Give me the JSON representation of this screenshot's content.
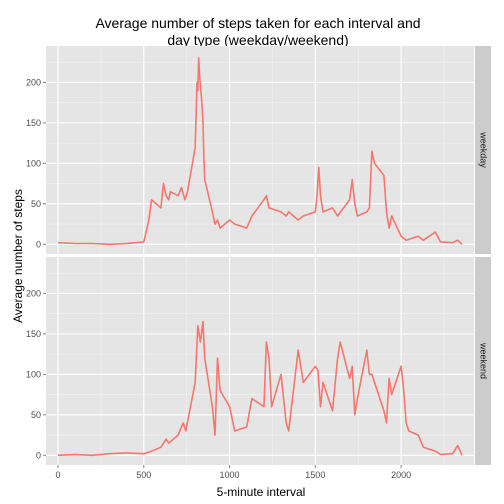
{
  "chart_data": {
    "type": "line",
    "title_lines": [
      "Average number of steps taken for each interval and",
      "day type (weekday/weekend)"
    ],
    "xlabel": "5-minute interval",
    "ylabel": "Average number of steps",
    "x_ticks": [
      0,
      500,
      1000,
      1500,
      2000
    ],
    "y_ticks": [
      0,
      50,
      100,
      150,
      200
    ],
    "xlim": [
      -70,
      2425
    ],
    "ylim": [
      -12,
      245
    ],
    "line_color": "#F8766D",
    "panel_bg": "#E5E5E5",
    "strip_bg": "#CCCCCC",
    "grid": true,
    "facets": [
      {
        "label": "weekday",
        "x": [
          0,
          100,
          200,
          300,
          400,
          500,
          530,
          545,
          600,
          615,
          630,
          645,
          655,
          700,
          720,
          740,
          755,
          800,
          810,
          815,
          820,
          825,
          830,
          835,
          840,
          845,
          850,
          855,
          900,
          915,
          930,
          945,
          1000,
          1030,
          1100,
          1130,
          1200,
          1215,
          1230,
          1300,
          1330,
          1345,
          1400,
          1430,
          1500,
          1510,
          1520,
          1530,
          1545,
          1600,
          1630,
          1700,
          1715,
          1730,
          1745,
          1800,
          1815,
          1830,
          1845,
          1900,
          1915,
          1930,
          1945,
          2000,
          2030,
          2100,
          2130,
          2200,
          2230,
          2300,
          2330,
          2355
        ],
        "y": [
          2,
          1,
          1,
          0,
          1,
          3,
          30,
          55,
          45,
          75,
          60,
          55,
          65,
          60,
          70,
          55,
          65,
          120,
          200,
          190,
          230,
          210,
          195,
          185,
          170,
          150,
          110,
          80,
          40,
          25,
          30,
          20,
          30,
          25,
          20,
          35,
          55,
          60,
          45,
          40,
          35,
          40,
          30,
          35,
          40,
          60,
          95,
          60,
          40,
          45,
          35,
          55,
          80,
          50,
          35,
          40,
          45,
          115,
          100,
          85,
          40,
          20,
          35,
          10,
          5,
          10,
          5,
          15,
          3,
          2,
          5,
          0
        ]
      },
      {
        "label": "weekend",
        "x": [
          0,
          100,
          200,
          300,
          400,
          500,
          545,
          600,
          630,
          645,
          700,
          730,
          745,
          800,
          815,
          830,
          845,
          855,
          900,
          915,
          930,
          945,
          1000,
          1030,
          1100,
          1130,
          1200,
          1215,
          1230,
          1245,
          1300,
          1330,
          1345,
          1400,
          1430,
          1500,
          1515,
          1530,
          1545,
          1600,
          1630,
          1645,
          1700,
          1715,
          1730,
          1745,
          1800,
          1815,
          1830,
          1845,
          1900,
          1915,
          1930,
          1945,
          2000,
          2015,
          2030,
          2045,
          2100,
          2130,
          2200,
          2230,
          2300,
          2330,
          2355
        ],
        "y": [
          0,
          1,
          0,
          2,
          3,
          2,
          5,
          10,
          20,
          15,
          25,
          40,
          30,
          90,
          160,
          140,
          165,
          120,
          60,
          25,
          120,
          80,
          60,
          30,
          35,
          70,
          60,
          140,
          120,
          60,
          100,
          40,
          30,
          130,
          90,
          110,
          105,
          60,
          90,
          55,
          120,
          140,
          95,
          110,
          50,
          70,
          130,
          100,
          100,
          90,
          55,
          40,
          95,
          75,
          110,
          80,
          40,
          30,
          25,
          10,
          5,
          1,
          2,
          12,
          0
        ]
      }
    ]
  }
}
